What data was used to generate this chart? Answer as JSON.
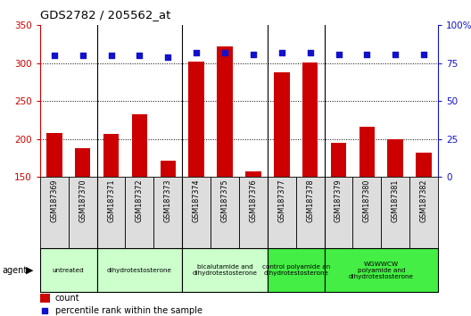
{
  "title": "GDS2782 / 205562_at",
  "samples": [
    "GSM187369",
    "GSM187370",
    "GSM187371",
    "GSM187372",
    "GSM187373",
    "GSM187374",
    "GSM187375",
    "GSM187376",
    "GSM187377",
    "GSM187378",
    "GSM187379",
    "GSM187380",
    "GSM187381",
    "GSM187382"
  ],
  "counts": [
    208,
    188,
    207,
    233,
    172,
    302,
    322,
    157,
    288,
    301,
    195,
    216,
    200,
    182
  ],
  "percentiles": [
    80,
    80,
    80,
    80,
    79,
    82,
    82,
    81,
    82,
    82,
    81,
    81,
    81,
    81
  ],
  "bar_color": "#cc0000",
  "dot_color": "#1111cc",
  "ylim_left": [
    150,
    350
  ],
  "ylim_right": [
    0,
    100
  ],
  "yticks_left": [
    150,
    200,
    250,
    300,
    350
  ],
  "yticks_right": [
    0,
    25,
    50,
    75,
    100
  ],
  "ytick_labels_right": [
    "0",
    "25",
    "50",
    "75",
    "100%"
  ],
  "groups": [
    {
      "label": "untreated",
      "samples": [
        0,
        1
      ],
      "color": "#ccffcc"
    },
    {
      "label": "dihydrotestosterone",
      "samples": [
        2,
        3,
        4
      ],
      "color": "#ccffcc"
    },
    {
      "label": "bicalutamide and\ndihydrotestosterone",
      "samples": [
        5,
        6,
        7
      ],
      "color": "#ccffcc"
    },
    {
      "label": "control polyamide an\ndihydrotestosterone",
      "samples": [
        8,
        9
      ],
      "color": "#44ee44"
    },
    {
      "label": "WGWWCW\npolyamide and\ndihydrotestosterone",
      "samples": [
        10,
        11,
        12,
        13
      ],
      "color": "#44ee44"
    }
  ],
  "group_border_after": [
    1,
    4,
    7,
    9
  ],
  "left_axis_color": "#cc0000",
  "right_axis_color": "#1111cc",
  "background_color": "#ffffff",
  "sample_box_color": "#dddddd",
  "legend_count_color": "#cc0000",
  "legend_pct_color": "#1111cc"
}
